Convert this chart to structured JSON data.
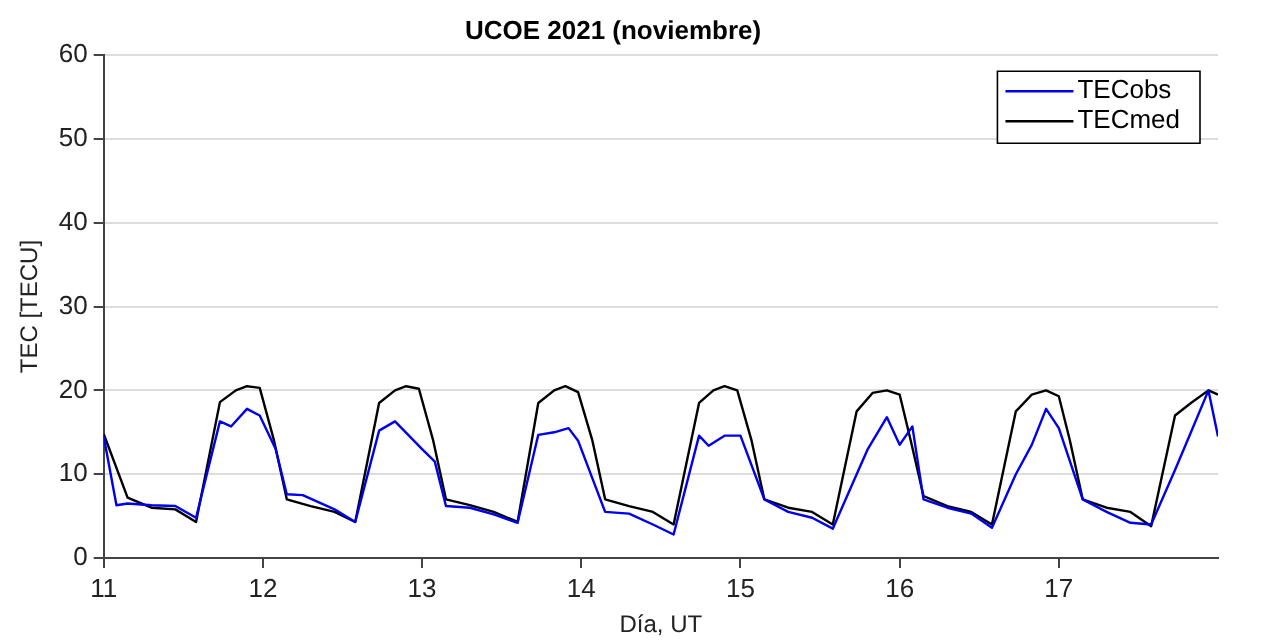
{
  "chart_data": {
    "type": "line",
    "title": "UCOE 2021 (noviembre)",
    "xlabel": "Día, UT",
    "ylabel": "TEC [TECU]",
    "xlim": [
      11,
      18
    ],
    "xticks": [
      11,
      12,
      13,
      14,
      15,
      16,
      17
    ],
    "ylim": [
      0,
      60
    ],
    "yticks": [
      0,
      10,
      20,
      30,
      40,
      50,
      60
    ],
    "grid": "y",
    "legend": "top right",
    "marker": "none",
    "line_style": "solid",
    "series": [
      {
        "name": "TECobs",
        "color": "#0000ee",
        "x": [
          11.0,
          11.08,
          11.15,
          11.3,
          11.45,
          11.58,
          11.73,
          11.8,
          11.9,
          11.98,
          12.08,
          12.15,
          12.25,
          12.45,
          12.58,
          12.73,
          12.83,
          13.0,
          13.08,
          13.15,
          13.3,
          13.45,
          13.6,
          13.73,
          13.83,
          13.92,
          13.98,
          14.08,
          14.15,
          14.3,
          14.45,
          14.58,
          14.74,
          14.8,
          14.9,
          15.0,
          15.15,
          15.3,
          15.45,
          15.58,
          15.73,
          15.8,
          15.92,
          16.0,
          16.08,
          16.15,
          16.3,
          16.45,
          16.58,
          16.73,
          16.83,
          16.92,
          17.0,
          17.15,
          17.3,
          17.45,
          17.58,
          17.73,
          17.83,
          17.94,
          18.0
        ],
        "values": [
          14.5,
          6.3,
          6.5,
          6.3,
          6.2,
          4.8,
          16.3,
          15.7,
          17.8,
          17,
          13,
          7.6,
          7.5,
          5.8,
          4.3,
          15.2,
          16.3,
          13,
          11.5,
          6.2,
          6,
          5.2,
          4.2,
          14.7,
          15,
          15.5,
          14,
          9,
          5.5,
          5.3,
          4,
          2.8,
          14.6,
          13.4,
          14.6,
          14.6,
          7,
          5.5,
          4.8,
          3.5,
          10,
          13,
          16.8,
          13.5,
          15.7,
          7,
          6,
          5.3,
          3.6,
          10,
          13.5,
          17.8,
          15.5,
          7,
          5.5,
          4.2,
          4,
          10.5,
          15,
          20,
          14.5
        ]
      },
      {
        "name": "TECmed",
        "color": "#000000",
        "x": [
          11.0,
          11.15,
          11.3,
          11.45,
          11.58,
          11.73,
          11.83,
          11.9,
          11.98,
          12.07,
          12.15,
          12.3,
          12.45,
          12.58,
          12.73,
          12.83,
          12.9,
          12.98,
          13.07,
          13.15,
          13.3,
          13.45,
          13.6,
          13.73,
          13.83,
          13.9,
          13.98,
          14.07,
          14.15,
          14.3,
          14.45,
          14.58,
          14.74,
          14.83,
          14.9,
          14.98,
          15.07,
          15.15,
          15.3,
          15.45,
          15.58,
          15.73,
          15.83,
          15.92,
          16.0,
          16.07,
          16.15,
          16.3,
          16.45,
          16.58,
          16.73,
          16.83,
          16.92,
          17.0,
          17.07,
          17.15,
          17.3,
          17.45,
          17.58,
          17.73,
          17.83,
          17.94,
          18.0
        ],
        "values": [
          14.8,
          7.2,
          6,
          5.8,
          4.3,
          18.6,
          20,
          20.5,
          20.3,
          14,
          7,
          6.2,
          5.5,
          4.3,
          18.5,
          20,
          20.5,
          20.2,
          14,
          7,
          6.3,
          5.5,
          4.3,
          18.5,
          20,
          20.5,
          19.8,
          14,
          7,
          6.2,
          5.5,
          4.0,
          18.5,
          20,
          20.5,
          20,
          14,
          7,
          6,
          5.5,
          4,
          17.5,
          19.7,
          20,
          19.5,
          14,
          7.4,
          6.2,
          5.5,
          4,
          17.5,
          19.5,
          20,
          19.3,
          14,
          7,
          6,
          5.5,
          3.8,
          17,
          18.5,
          20,
          19.5
        ]
      }
    ]
  }
}
